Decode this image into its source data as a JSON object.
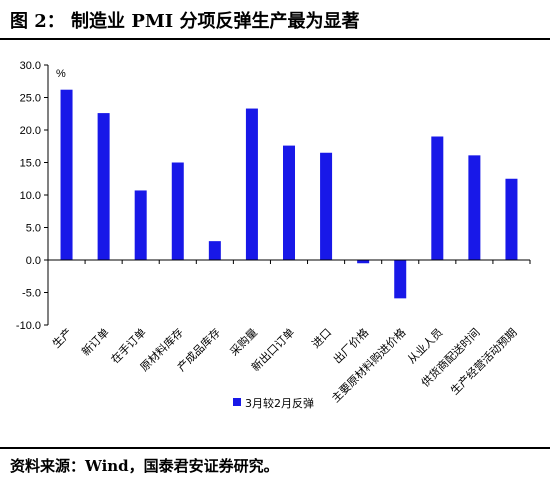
{
  "header": {
    "title": "图 2：  制造业 PMI 分项反弹生产最为显著"
  },
  "footer": {
    "source": "资料来源：Wind，国泰君安证券研究。"
  },
  "chart_data": {
    "type": "bar",
    "categories": [
      "生产",
      "新订单",
      "在手订单",
      "原材料库存",
      "产成品库存",
      "采购量",
      "新出口订单",
      "进口",
      "出厂价格",
      "主要原材料购进价格",
      "从业人员",
      "供货商配送时间",
      "生产经营活动预期"
    ],
    "series": [
      {
        "name": "3月较2月反弹",
        "values": [
          26.2,
          22.6,
          10.7,
          15.0,
          2.9,
          23.3,
          17.6,
          16.5,
          -0.5,
          -5.9,
          19.0,
          16.1,
          12.5
        ],
        "color": "#1818e8"
      }
    ],
    "ylim": [
      -10,
      30
    ],
    "yticks": [
      "30.0",
      "25.0",
      "20.0",
      "15.0",
      "10.0",
      "5.0",
      "0.0",
      "-5.0",
      "-10.0"
    ],
    "ytick_values": [
      30,
      25,
      20,
      15,
      10,
      5,
      0,
      -5,
      -10
    ],
    "unit_label": "%",
    "grid": false,
    "legend_position": "bottom-center"
  }
}
